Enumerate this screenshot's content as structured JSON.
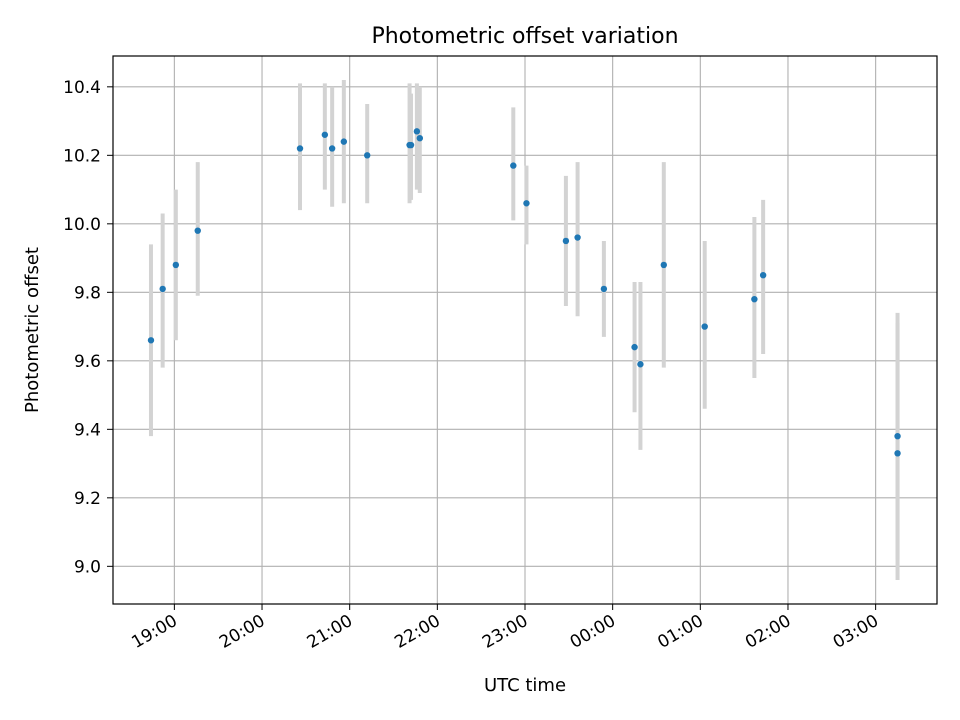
{
  "chart_data": {
    "type": "scatter",
    "title": "Photometric offset variation",
    "xlabel": "UTC time",
    "ylabel": "Photometric offset",
    "x_ticks": [
      "19:00",
      "20:00",
      "21:00",
      "22:00",
      "23:00",
      "00:00",
      "01:00",
      "02:00",
      "03:00"
    ],
    "y_ticks": [
      "9.0",
      "9.2",
      "9.4",
      "9.6",
      "9.8",
      "10.0",
      "10.2",
      "10.4"
    ],
    "xlim": [
      "18:18",
      "27:42"
    ],
    "ylim": [
      8.89,
      10.49
    ],
    "grid": true,
    "marker_color": "#1f77b4",
    "errorbar_color": "#d3d3d3",
    "points": [
      {
        "x": "18:44",
        "y": 9.66,
        "err_low": 9.38,
        "err_high": 9.94
      },
      {
        "x": "18:52",
        "y": 9.81,
        "err_low": 9.58,
        "err_high": 10.03
      },
      {
        "x": "19:01",
        "y": 9.88,
        "err_low": 9.66,
        "err_high": 10.1
      },
      {
        "x": "19:16",
        "y": 9.98,
        "err_low": 9.79,
        "err_high": 10.18
      },
      {
        "x": "20:26",
        "y": 10.22,
        "err_low": 10.04,
        "err_high": 10.41
      },
      {
        "x": "20:43",
        "y": 10.26,
        "err_low": 10.1,
        "err_high": 10.41
      },
      {
        "x": "20:48",
        "y": 10.22,
        "err_low": 10.05,
        "err_high": 10.4
      },
      {
        "x": "20:56",
        "y": 10.24,
        "err_low": 10.06,
        "err_high": 10.42
      },
      {
        "x": "21:12",
        "y": 10.2,
        "err_low": 10.06,
        "err_high": 10.35
      },
      {
        "x": "21:41",
        "y": 10.23,
        "err_low": 10.06,
        "err_high": 10.41
      },
      {
        "x": "21:42",
        "y": 10.23,
        "err_low": 10.07,
        "err_high": 10.38
      },
      {
        "x": "21:46",
        "y": 10.27,
        "err_low": 10.1,
        "err_high": 10.41
      },
      {
        "x": "21:48",
        "y": 10.25,
        "err_low": 10.09,
        "err_high": 10.4
      },
      {
        "x": "22:52",
        "y": 10.17,
        "err_low": 10.01,
        "err_high": 10.34
      },
      {
        "x": "23:01",
        "y": 10.06,
        "err_low": 9.94,
        "err_high": 10.17
      },
      {
        "x": "23:28",
        "y": 9.95,
        "err_low": 9.76,
        "err_high": 10.14
      },
      {
        "x": "23:36",
        "y": 9.96,
        "err_low": 9.73,
        "err_high": 10.18
      },
      {
        "x": "23:54",
        "y": 9.81,
        "err_low": 9.67,
        "err_high": 9.95
      },
      {
        "x": "24:15",
        "y": 9.64,
        "err_low": 9.45,
        "err_high": 9.83
      },
      {
        "x": "24:19",
        "y": 9.59,
        "err_low": 9.34,
        "err_high": 9.83
      },
      {
        "x": "24:35",
        "y": 9.88,
        "err_low": 9.58,
        "err_high": 10.18
      },
      {
        "x": "25:03",
        "y": 9.7,
        "err_low": 9.46,
        "err_high": 9.95
      },
      {
        "x": "25:37",
        "y": 9.78,
        "err_low": 9.55,
        "err_high": 10.02
      },
      {
        "x": "25:43",
        "y": 9.85,
        "err_low": 9.62,
        "err_high": 10.07
      },
      {
        "x": "27:15",
        "y": 9.38,
        "err_low": 9.02,
        "err_high": 9.74
      },
      {
        "x": "27:15",
        "y": 9.33,
        "err_low": 8.96,
        "err_high": 9.71
      }
    ]
  }
}
